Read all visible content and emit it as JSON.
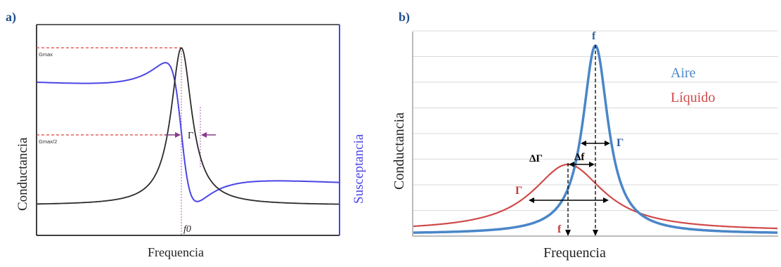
{
  "panel_a": {
    "label": "a)",
    "ylabel_left": "Conductancia",
    "ylabel_right": "Susceptancia",
    "xlabel": "Frequencia",
    "gmax_label": "Gmax",
    "ghalf_label": "Gmax/2",
    "gamma_label": "Γ",
    "f0_label": "f0",
    "colors": {
      "conductance": "#2b2b2b",
      "susceptance": "#4b45e6",
      "reference": "#e0403a",
      "marker": "#8a3a8a",
      "frame": "#000000"
    }
  },
  "panel_b": {
    "label": "b)",
    "ylabel": "Conductancia",
    "xlabel": "Frequencia",
    "legend": [
      {
        "name": "Aire",
        "color": "#4a86c8"
      },
      {
        "name": "Líquido",
        "color": "#d04a4a"
      }
    ],
    "f_top_label": "f",
    "f_bottom_label": "f",
    "gamma_air_label": "Γ",
    "gamma_liquid_label": "Γ",
    "delta_gamma_label": "ΔΓ",
    "delta_f_label": "Δf",
    "colors": {
      "grid": "#d9d9d9",
      "air_label": "#2f5f9e",
      "liquid_label": "#c43a3a",
      "annotation": "#000000"
    }
  }
}
